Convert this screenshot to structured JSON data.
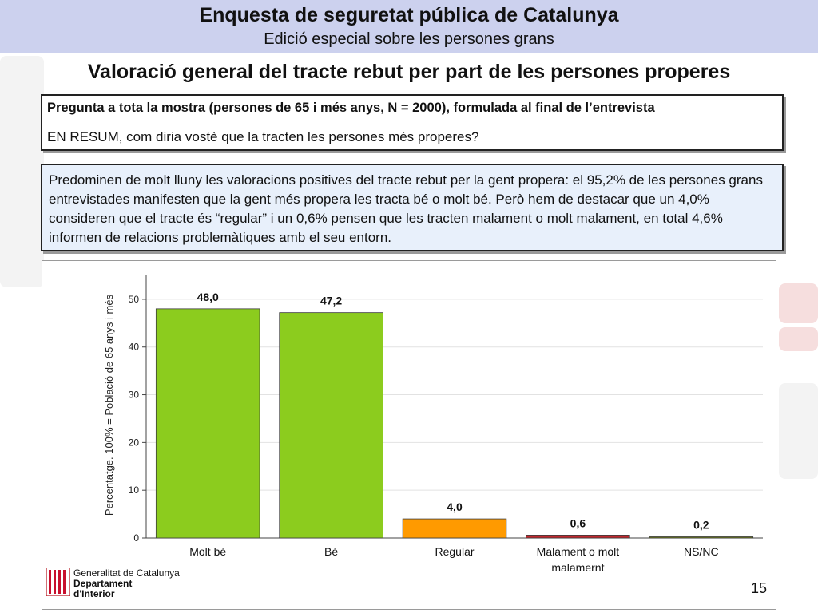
{
  "header": {
    "title": "Enquesta de seguretat pública de Catalunya",
    "subtitle": "Edició especial sobre les persones grans"
  },
  "section_title": "Valoració general del tracte rebut per part de les persones properes",
  "question_box": {
    "line1": "Pregunta a tota la mostra (persones de 65 i més anys, N = 2000), formulada al final de l’entrevista",
    "line2": "EN RESUM, com diria vostè que la tracten les persones més properes?"
  },
  "summary_box": {
    "text": "Predominen de molt lluny les valoracions positives del tracte rebut per la gent propera: el 95,2% de les persones grans entrevistades manifesten que la gent més propera les tracta bé o molt bé. Però hem de destacar que un 4,0% consideren que el tracte és “regular” i un 0,6% pensen que les tracten malament o molt malament, en total 4,6% informen de relacions problemàtiques amb el seu entorn."
  },
  "chart_data": {
    "type": "bar",
    "title": "",
    "xlabel": "",
    "ylabel": "Percentatge. 100% = Població de 65 anys i més",
    "categories": [
      "Molt bé",
      "Bé",
      "Regular",
      "Malament o molt malamernt",
      "NS/NC"
    ],
    "category_lines": [
      [
        "Molt bé"
      ],
      [
        "Bé"
      ],
      [
        "Regular"
      ],
      [
        "Malament o molt",
        "malamernt"
      ],
      [
        "NS/NC"
      ]
    ],
    "values": [
      48.0,
      47.2,
      4.0,
      0.6,
      0.2
    ],
    "value_labels": [
      "48,0",
      "47,2",
      "4,0",
      "0,6",
      "0,2"
    ],
    "bar_colors": [
      "#8ccc1e",
      "#8ccc1e",
      "#ff9a00",
      "#c0282d",
      "#6f7f1a"
    ],
    "ylim": [
      0,
      55
    ],
    "yticks": [
      0,
      10,
      20,
      30,
      40,
      50
    ],
    "grid": true,
    "legend": "none"
  },
  "logo": {
    "line1": "Generalitat de Catalunya",
    "line2": "Departament",
    "line3": "d'Interior"
  },
  "page_number": "15"
}
